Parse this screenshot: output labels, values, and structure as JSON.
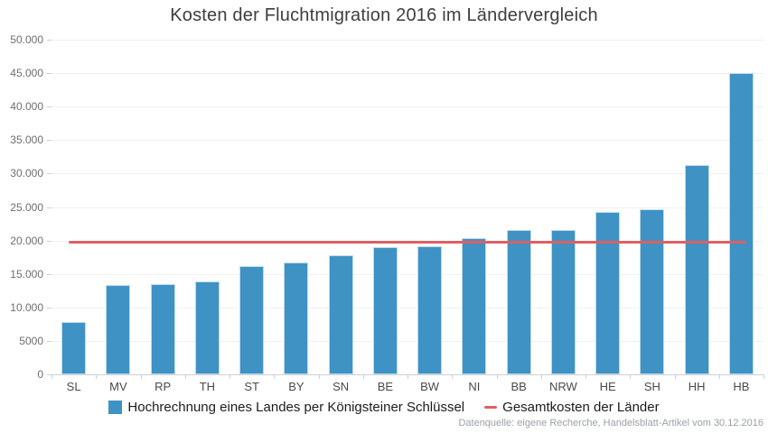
{
  "title": "Kosten der Fluchtmigration 2016 im Ländervergleich",
  "colors": {
    "bar": "#3e92c4",
    "bar_border": "#bfdaec",
    "line": "#dc6164",
    "grid": "#eef0f3",
    "axis": "#ccd0d5",
    "title_text": "#3e3e3e",
    "tick_text": "#6e6e6e",
    "category_text": "#4a4a4a",
    "legend_text": "#1c1c1c",
    "source_text": "#9aa1a8"
  },
  "chart_data": {
    "type": "bar",
    "title": "Kosten der Fluchtmigration 2016 im Ländervergleich",
    "categories": [
      "SL",
      "MV",
      "RP",
      "TH",
      "ST",
      "BY",
      "SN",
      "BE",
      "BW",
      "NI",
      "BB",
      "NRW",
      "HE",
      "SH",
      "HH",
      "HB"
    ],
    "series": [
      {
        "name": "Hochrechnung eines Landes per Königsteiner Schlüssel",
        "type": "bar",
        "values": [
          7800,
          13400,
          13500,
          13900,
          16200,
          16700,
          17800,
          19000,
          19200,
          20300,
          21500,
          21600,
          24200,
          24600,
          31300,
          45000
        ]
      },
      {
        "name": "Gesamtkosten der Länder",
        "type": "line",
        "constant_value": 19750
      }
    ],
    "xlabel": "",
    "ylabel": "",
    "ylim": [
      0,
      50000
    ],
    "y_tick_step": 5000,
    "y_tick_labels": [
      "0",
      "5000",
      "10.000",
      "15.000",
      "20.000",
      "25.000",
      "30.000",
      "35.000",
      "40.000",
      "45.000",
      "50.000"
    ],
    "grid": "horizontal",
    "legend_position": "bottom"
  },
  "legend": {
    "bar_label": "Hochrechnung eines Landes per Königsteiner Schlüssel",
    "line_label": "Gesamtkosten der Länder"
  },
  "footer": {
    "source": "Datenquelle: eigene Recherche, Handelsblatt-Artikel vom 30.12.2016"
  }
}
